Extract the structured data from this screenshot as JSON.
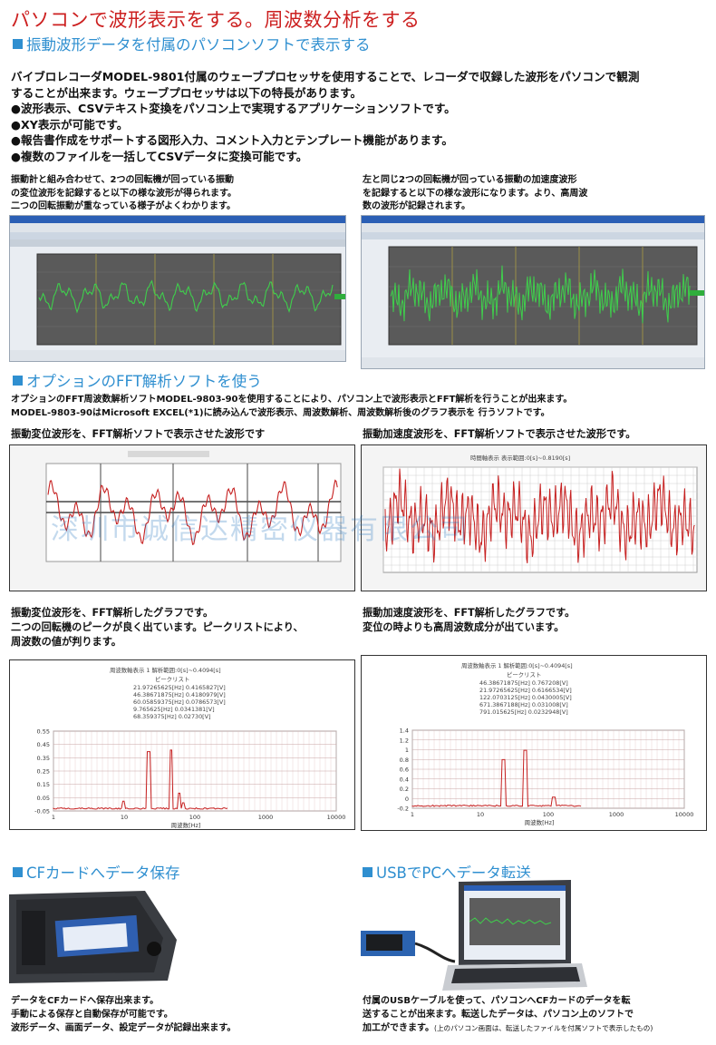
{
  "header": {
    "title": "パソコンで波形表示をする。周波数分析をする",
    "section1": "振動波形データを付属のパソコンソフトで表示する"
  },
  "intro": {
    "line1": "バイブロレコーダMODEL-9801付属のウェーブプロセッサを使用することで、レコーダで収録した波形をパソコンで観測",
    "line2": "することが出来ます。ウェーブプロセッサは以下の特長があります。",
    "bullets": [
      "●波形表示、CSVテキスト変換をパソコン上で実現するアプリケーションソフトです。",
      "●XY表示が可能です。",
      "●報告書作成をサポートする図形入力、コメント入力とテンプレート機能があります。",
      "●複数のファイルを一括してCSVデータに変換可能です。"
    ]
  },
  "captions": {
    "left1": [
      "振動計と組み合わせて、2つの回転機が回っている振動",
      "の変位波形を記録すると以下の様な波形が得られます。",
      "二つの回転振動が重なっている様子がよくわかります。"
    ],
    "right1": [
      "左と同じ2つの回転機が回っている振動の加速度波形",
      "を記録すると以下の様な波形になります。より、高周波",
      "数の波形が記録されます。"
    ]
  },
  "section2": {
    "title": "オプションのFFT解析ソフトを使う",
    "line1": "オプションのFFT周波数解析ソフトMODEL-9803-90を使用することにより、パソコン上で波形表示とFFT解析を行うことが出来ます。",
    "line2": "MODEL-9803-90はMicrosoft EXCEL(*1)に読み込んで波形表示、周波数解析、周波数解析後のグラフ表示を 行うソフトです。",
    "cap_left": "振動変位波形を、FFT解析ソフトで表示させた波形です",
    "cap_right": "振動加速度波形を、FFT解析ソフトで表示させた波形です。",
    "chart_title_right": "時間軸表示 表示範囲:0[s]~0.8190[s]"
  },
  "fft": {
    "cap_left": [
      "振動変位波形を、FFT解析したグラフです。",
      "二つの回転機のピークが良く出ています。ピークリストにより、",
      "周波数の値が判ります。"
    ],
    "cap_right": [
      "振動加速度波形を、FFT解析したグラフです。",
      "変位の時よりも高周波数成分が出ています。"
    ],
    "left_title": "周波数軸表示 1 解析範囲:0[s]~0.4094[s]",
    "left_peak_heading": "ピークリスト",
    "left_peaks": [
      "21.97265625[Hz] 0.4165827[V]",
      "46.38671875[Hz] 0.4180979[V]",
      "60.05859375[Hz] 0.0786573[V]",
      "9.765625[Hz] 0.0341381[V]",
      "68.359375[Hz] 0.02730[V]"
    ],
    "left_yticks": [
      "0.55",
      "0.45",
      "0.35",
      "0.25",
      "0.15",
      "0.05",
      "-0.05"
    ],
    "left_xticks": [
      "1",
      "10",
      "100",
      "1000",
      "10000"
    ],
    "left_xlabel": "周波数[Hz]",
    "right_title": "周波数軸表示 1 解析範囲:0[s]~0.4094[s]",
    "right_peak_heading": "ピークリスト",
    "right_peaks": [
      "46.38671875[Hz] 0.767208[V]",
      "21.97265625[Hz] 0.6166534[V]",
      "122.0703125[Hz] 0.0430005[V]",
      "671.3867188[Hz] 0.031008[V]",
      "791.015625[Hz] 0.0232948[V]"
    ],
    "right_yticks": [
      "1.4",
      "1.2",
      "1",
      "0.8",
      "0.6",
      "0.4",
      "0.2",
      "0",
      "-0.2"
    ],
    "right_xticks": [
      "1",
      "10",
      "100",
      "1000",
      "10000"
    ],
    "right_xlabel": "周波数[Hz]"
  },
  "section3": {
    "left_title": "CFカードへデータ保存",
    "right_title": "USBでPCへデータ転送",
    "left_text": [
      "データをCFカードへ保存出来ます。",
      "手動による保存と自動保存が可能です。",
      "波形データ、画面データ、設定データが記録出来ます。"
    ],
    "right_text": [
      "付属のUSBケーブルを使って、パソコンへCFカードのデータを転",
      "送することが出来ます。転送したデータは、パソコン上のソフトで"
    ],
    "right_text_last": "加工ができます。",
    "right_note": "(上のパソコン画面は、転送したファイルを付属ソフトで表示したもの)"
  },
  "watermark": "深圳市诚信达精密仪器有限公司",
  "colors": {
    "title_red": "#cc1f1f",
    "section_blue": "#2f8fd0",
    "wave_red": "#c62020",
    "wave_green": "#2fae3c"
  }
}
